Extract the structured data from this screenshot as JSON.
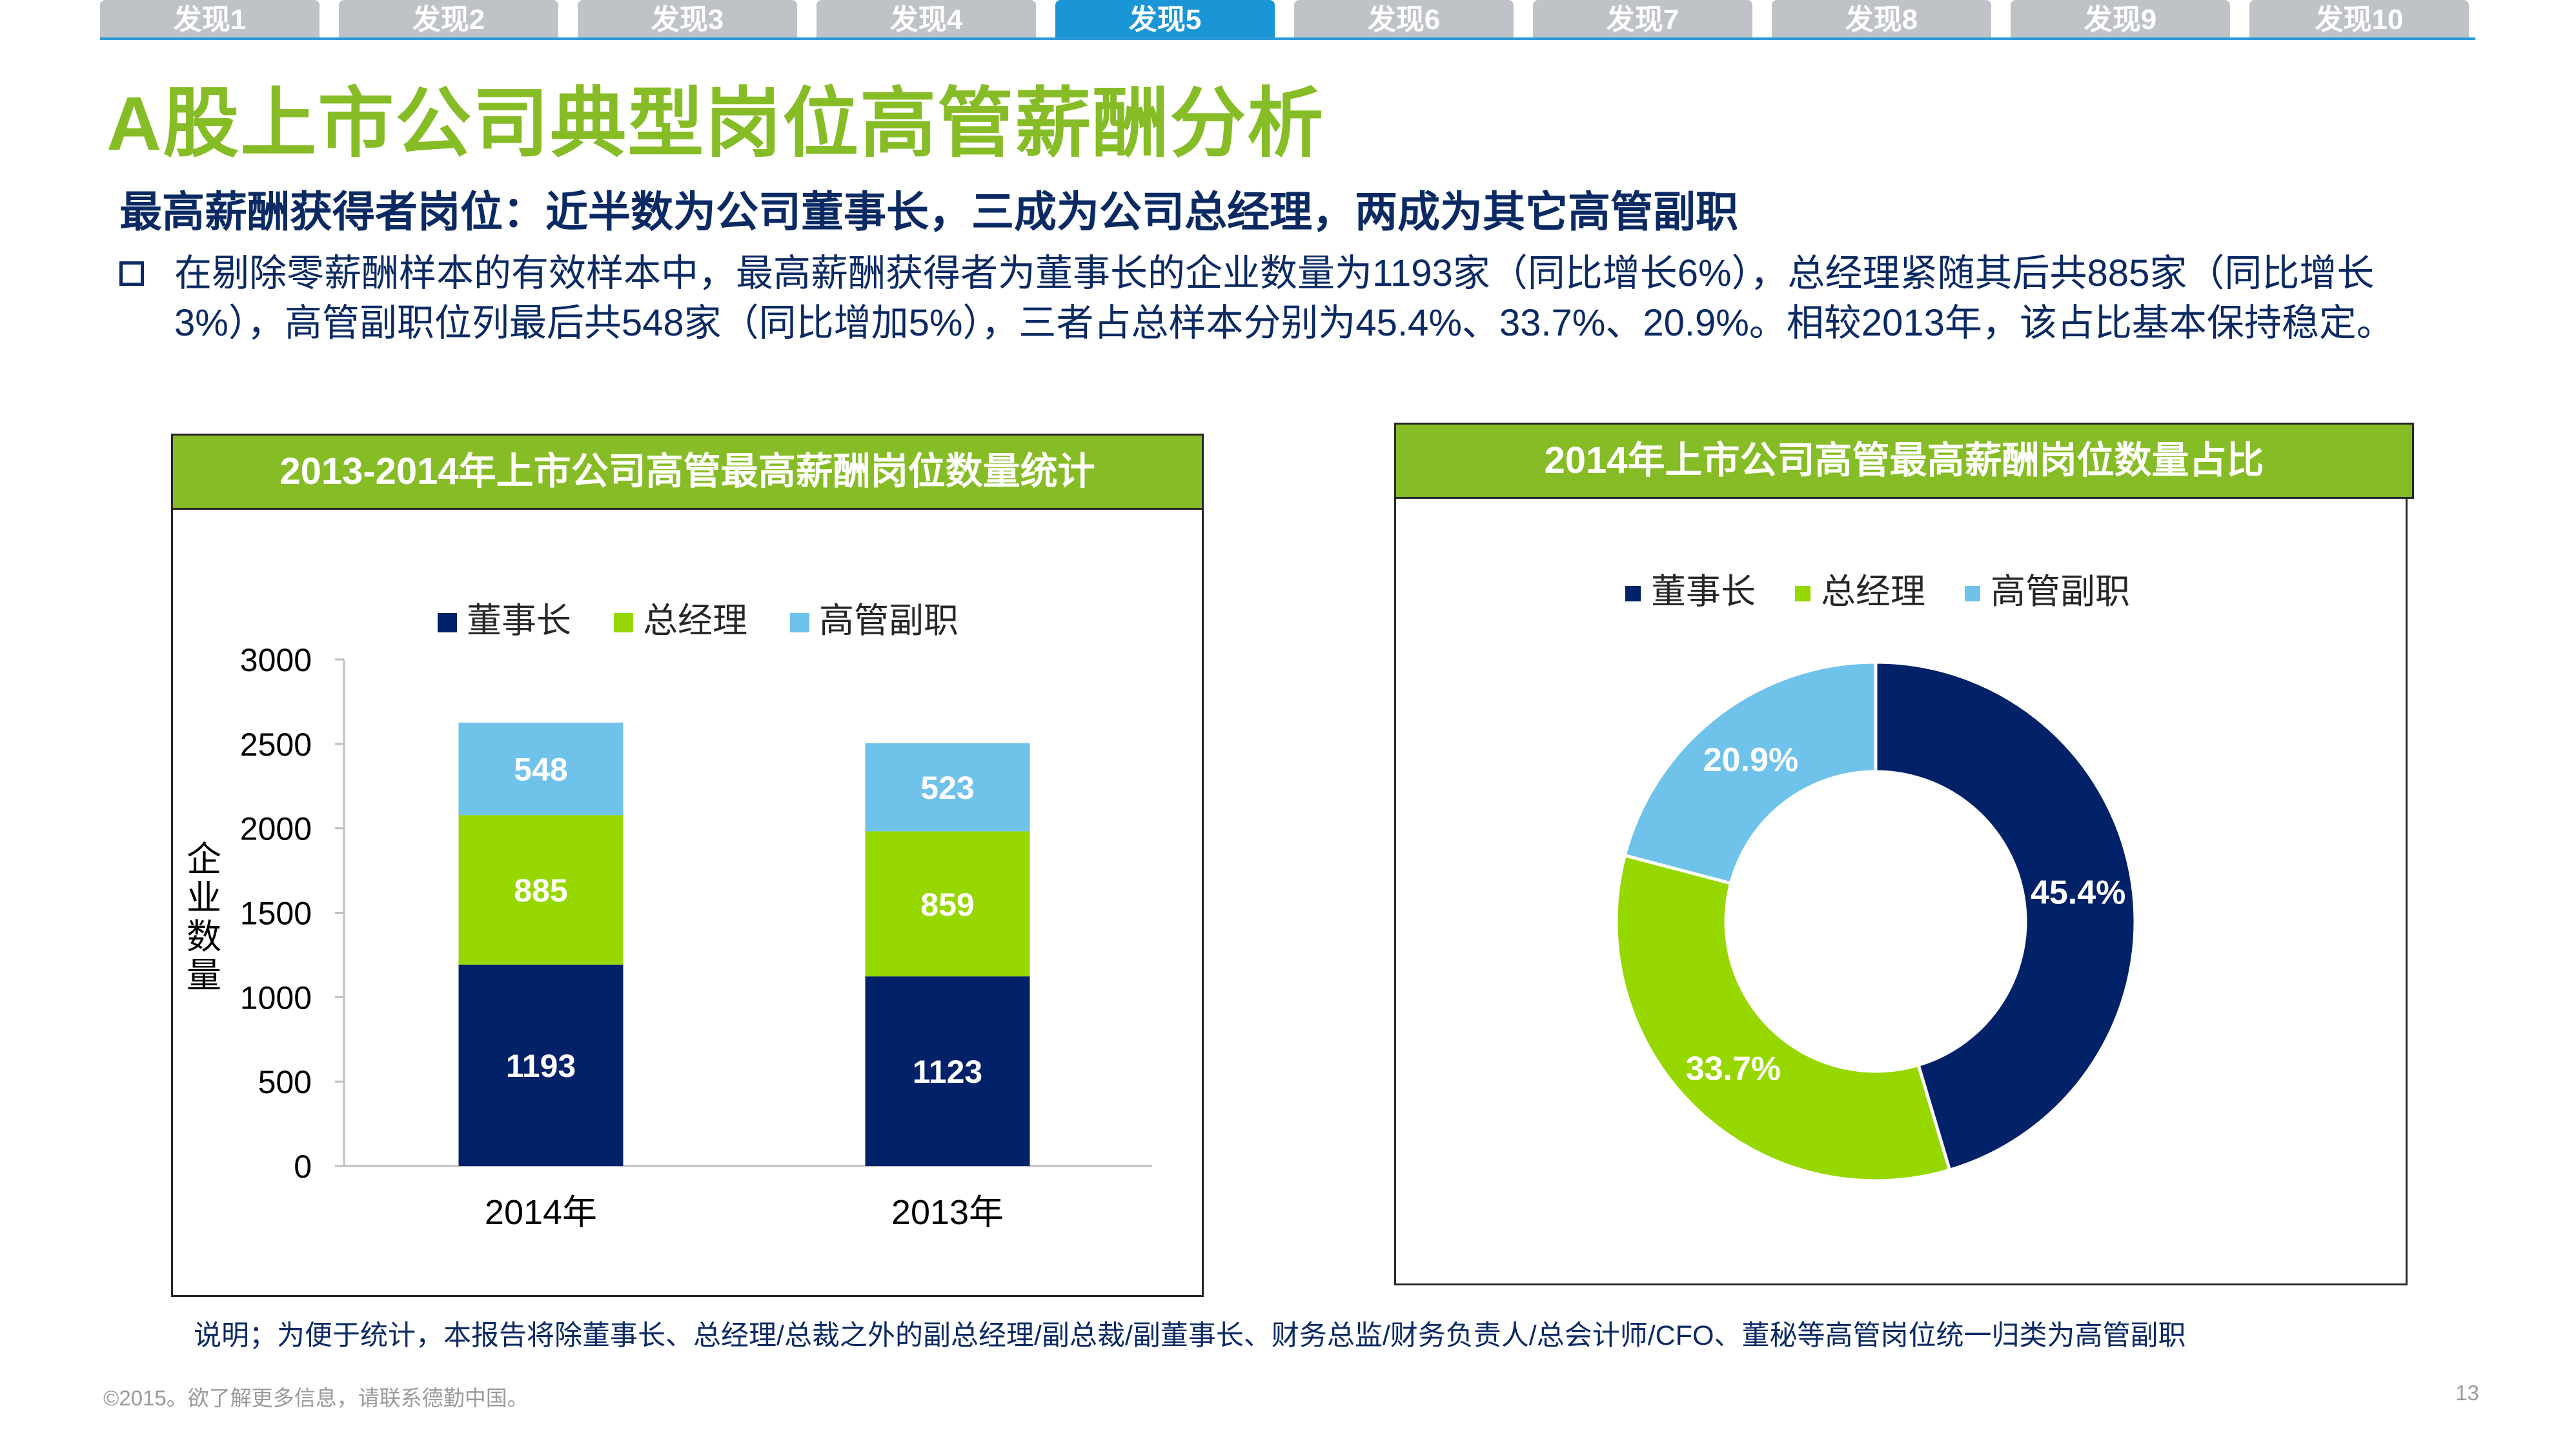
{
  "nav": {
    "tabs": [
      "发现1",
      "发现2",
      "发现3",
      "发现4",
      "发现5",
      "发现6",
      "发现7",
      "发现8",
      "发现9",
      "发现10"
    ],
    "active_index": 4
  },
  "header": {
    "title": "A股上市公司典型岗位高管薪酬分析",
    "subtitle": "最高薪酬获得者岗位：近半数为公司董事长，三成为公司总经理，两成为其它高管副职",
    "bullet": "在剔除零薪酬样本的有效样本中，最高薪酬获得者为董事长的企业数量为1193家（同比增长6%），总经理紧随其后共885家（同比增长3%），高管副职位列最后共548家（同比增加5%），三者占总样本分别为45.4%、33.7%、20.9%。相较2013年，该占比基本保持稳定。"
  },
  "colors": {
    "chairman": "#012169",
    "gm": "#97d700",
    "vice": "#6fc2ea",
    "accent": "#86bc25",
    "tab_active": "#1a95d6"
  },
  "chart_data": [
    {
      "type": "bar",
      "stacked": true,
      "title": "2013-2014年上市公司高管最高薪酬岗位数量统计",
      "categories": [
        "2014年",
        "2013年"
      ],
      "series": [
        {
          "name": "董事长",
          "values": [
            1193,
            1123
          ]
        },
        {
          "name": "总经理",
          "values": [
            885,
            859
          ]
        },
        {
          "name": "高管副职",
          "values": [
            548,
            523
          ]
        }
      ],
      "ylabel": "企业数量",
      "xlabel": "",
      "ylim": [
        0,
        3000
      ],
      "yticks": [
        "0",
        "500",
        "1000",
        "1500",
        "2000",
        "2500",
        "3000"
      ],
      "legend": "top",
      "grid": false
    },
    {
      "type": "pie",
      "donut": true,
      "title": "2014年上市公司高管最高薪酬岗位数量占比",
      "labels": [
        "董事长",
        "总经理",
        "高管副职"
      ],
      "values": [
        45.4,
        33.7,
        20.9
      ],
      "value_labels": [
        "45.4%",
        "33.7%",
        "20.9%"
      ],
      "legend": "top"
    }
  ],
  "note": "说明；为便于统计，本报告将除董事长、总经理/总裁之外的副总经理/副总裁/副董事长、财务总监/财务负责人/总会计师/CFO、董秘等高管岗位统一归类为高管副职",
  "footer": {
    "copyright": "©2015。欲了解更多信息，请联系德勤中国。",
    "page": "13"
  }
}
